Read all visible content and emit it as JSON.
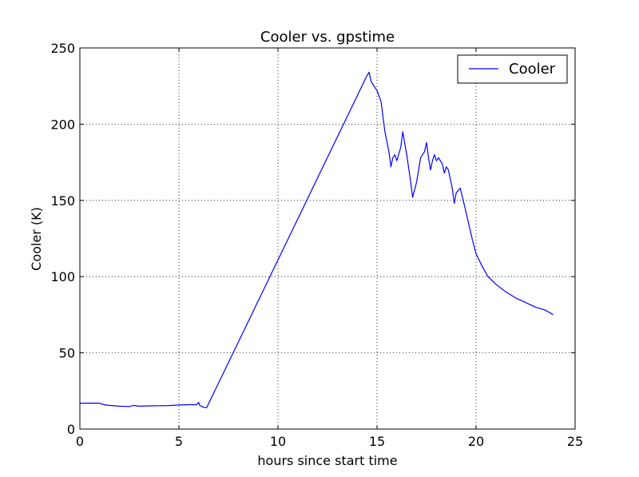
{
  "chart_data": {
    "type": "line",
    "title": "Cooler vs. gpstime",
    "xlabel": "hours since start time",
    "ylabel": "Cooler (K)",
    "xlim": [
      0,
      25
    ],
    "ylim": [
      0,
      250
    ],
    "xticks": [
      0,
      5,
      10,
      15,
      20,
      25
    ],
    "yticks": [
      0,
      50,
      100,
      150,
      200,
      250
    ],
    "grid": true,
    "legend_position": "top-right",
    "series": [
      {
        "name": "Cooler",
        "color": "#0000ff",
        "x": [
          0,
          0.5,
          1.0,
          1.2,
          1.5,
          2.0,
          2.5,
          2.7,
          3.0,
          3.5,
          4.0,
          4.5,
          5.0,
          5.5,
          5.9,
          6.0,
          6.05,
          6.2,
          6.4,
          14.5,
          14.6,
          14.7,
          15.0,
          15.2,
          15.4,
          15.6,
          15.7,
          15.8,
          15.9,
          16.0,
          16.2,
          16.3,
          16.5,
          16.7,
          16.8,
          17.0,
          17.2,
          17.4,
          17.5,
          17.6,
          17.7,
          17.8,
          17.9,
          18.0,
          18.1,
          18.3,
          18.4,
          18.5,
          18.6,
          18.8,
          18.9,
          19.0,
          19.2,
          19.5,
          19.8,
          20.0,
          20.3,
          20.6,
          21.0,
          21.5,
          22.0,
          22.5,
          23.0,
          23.5,
          23.9
        ],
        "y": [
          17,
          17,
          17,
          16,
          15.5,
          15,
          14.8,
          15.5,
          15,
          15.2,
          15.3,
          15.4,
          15.8,
          16,
          16,
          17.5,
          15.5,
          14.5,
          14,
          232,
          234,
          228,
          222,
          215,
          195,
          182,
          172,
          178,
          180,
          176,
          185,
          195,
          180,
          162,
          152,
          162,
          178,
          182,
          188,
          178,
          170,
          176,
          180,
          176,
          178,
          174,
          168,
          172,
          170,
          158,
          148,
          155,
          158,
          142,
          125,
          115,
          107,
          100,
          95,
          90,
          86,
          83,
          80,
          78,
          75
        ]
      }
    ]
  }
}
